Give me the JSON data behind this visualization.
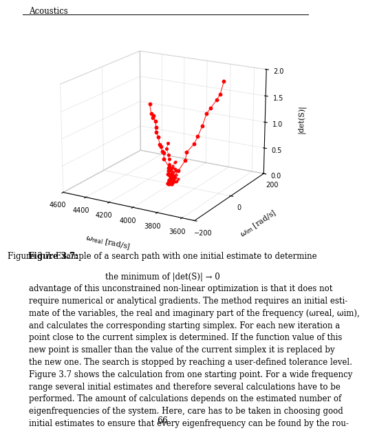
{
  "header": "Acoustics",
  "xlabel": "$\\omega_{\\mathrm{real}}$ [rad/s]",
  "ylabel": "$\\omega_{\\mathrm{im}}$ [rad/s]",
  "zlabel": "|det(S)|",
  "xlim_min": 3500,
  "xlim_max": 4600,
  "ylim_min": -200,
  "ylim_max": 200,
  "zlim_min": 0,
  "zlim_max": 2,
  "xticks": [
    4600,
    4400,
    4200,
    4000,
    3800,
    3600
  ],
  "yticks": [
    200,
    0,
    -200
  ],
  "zticks": [
    0,
    0.5,
    1,
    1.5,
    2
  ],
  "elev": 18,
  "azim": -60,
  "color": "red",
  "caption_bold": "Figure 3.7:",
  "caption_rest": " Example of a search path with one initial estimate to determine",
  "caption_line2": "the minimum of |det(S)| → 0",
  "body_line1": "advantage of this unconstrained non-linear optimization is that it does not",
  "body_line2": "require numerical or analytical gradients. The method requires an initial esti-",
  "body_line3": "mate of the variables, the real and imaginary part of the frequency (ωreal, ωim),",
  "body_line4": "and calculates the corresponding starting simplex. For each new iteration a",
  "body_line5": "point close to the current simplex is determined. If the function value of this",
  "body_line6": "new point is smaller than the value of the current simplex it is replaced by",
  "body_line7": "the new one. The search is stopped by reaching a user-defined tolerance level.",
  "body_line8": "Figure 3.7 shows the calculation from one starting point. For a wide frequency",
  "body_line9": "range several initial estimates and therefore several calculations have to be",
  "body_line10": "performed. The amount of calculations depends on the estimated number of",
  "body_line11": "eigenfrequencies of the system. Here, care has to be taken in choosing good",
  "body_line12": "initial estimates to ensure that every eigenfrequency can be found by the rou-",
  "page_number": "66"
}
